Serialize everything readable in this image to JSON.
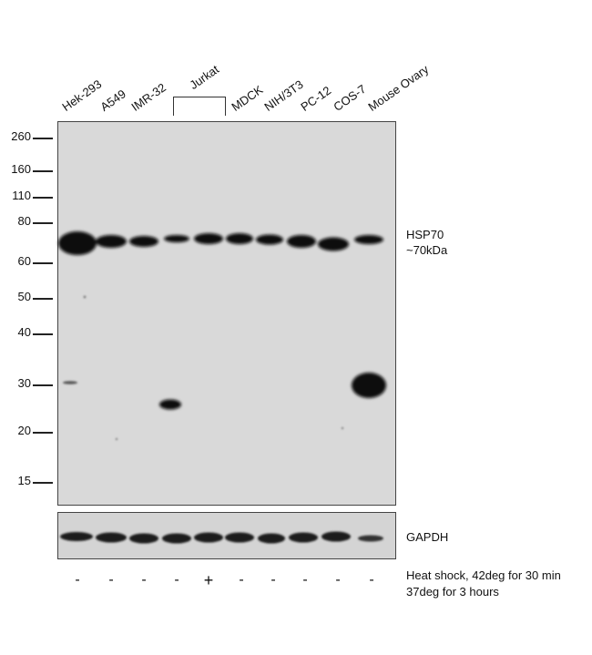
{
  "lanes": [
    {
      "label": "Hek-293",
      "heat_shock": "-"
    },
    {
      "label": "A549",
      "heat_shock": "-"
    },
    {
      "label": "IMR-32",
      "heat_shock": "-"
    },
    {
      "label": "",
      "heat_shock": "-"
    },
    {
      "label": "",
      "heat_shock": "+"
    },
    {
      "label": "MDCK",
      "heat_shock": "-"
    },
    {
      "label": "NIH/3T3",
      "heat_shock": "-"
    },
    {
      "label": "PC-12",
      "heat_shock": "-"
    },
    {
      "label": "COS-7",
      "heat_shock": "-"
    },
    {
      "label": "Mouse Ovary",
      "heat_shock": "-"
    }
  ],
  "jurkat_label": "Jurkat",
  "markers": [
    "260",
    "160",
    "110",
    "80",
    "60",
    "50",
    "40",
    "30",
    "20",
    "15"
  ],
  "target": {
    "name": "HSP70",
    "size": "~70kDa"
  },
  "loading_control": "GAPDH",
  "treatment": {
    "line1": "Heat shock, 42deg for 30 min",
    "line2": "37deg for 3 hours"
  },
  "colors": {
    "membrane": "#d9d9d9",
    "band": "#0a0a0a",
    "lower_membrane": "#d4d4d4"
  }
}
